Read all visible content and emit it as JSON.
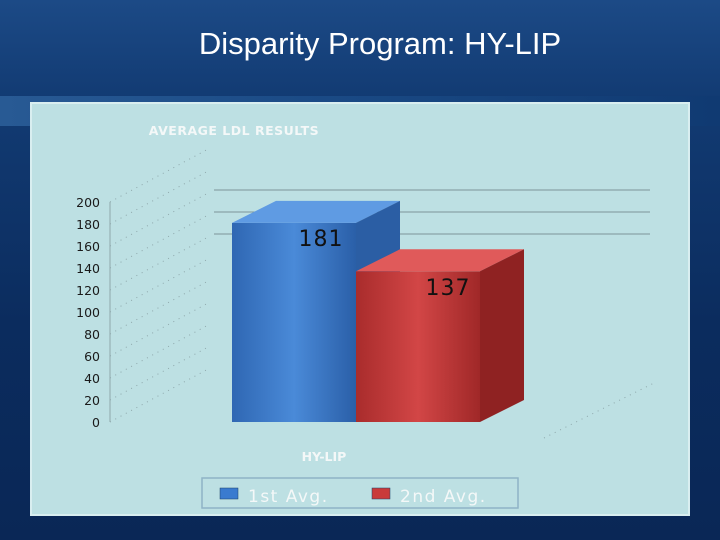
{
  "slide": {
    "title": "Disparity Program:  HY-LIP"
  },
  "chart_data": {
    "type": "bar",
    "title": "AVERAGE LDL RESULTS",
    "categories": [
      "HY-LIP"
    ],
    "series": [
      {
        "name": "1st Avg.",
        "values": [
          181
        ],
        "color": "#3d7fd0"
      },
      {
        "name": "2nd Avg.",
        "values": [
          137
        ],
        "color": "#c63a3a"
      }
    ],
    "ylim": [
      0,
      200
    ],
    "yticks": [
      "0",
      "20",
      "40",
      "60",
      "80",
      "100",
      "120",
      "140",
      "160",
      "180",
      "200"
    ],
    "data_labels": [
      "181",
      "137"
    ],
    "legend_position": "bottom",
    "grid": true,
    "three_d": true
  }
}
